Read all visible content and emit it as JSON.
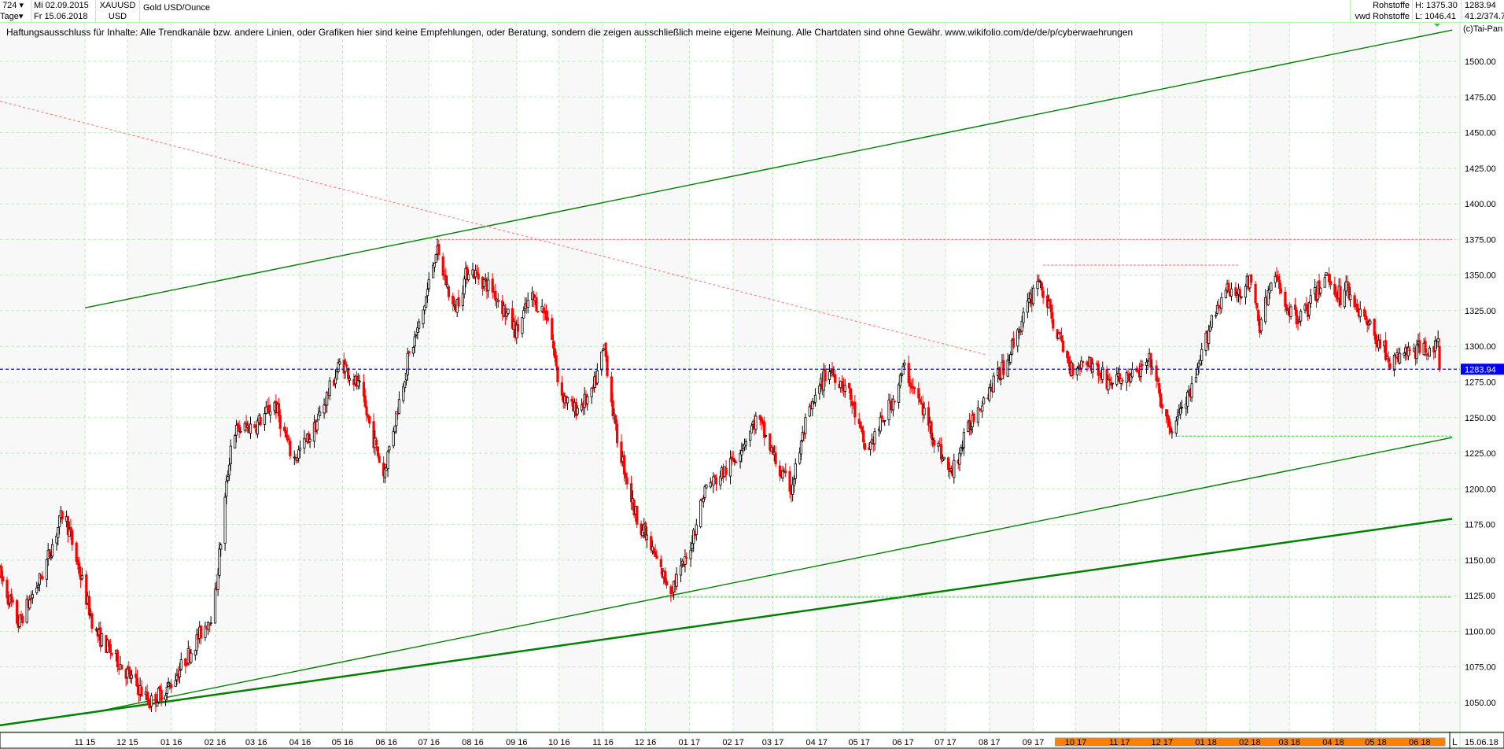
{
  "header": {
    "bars_count": "724",
    "period": "Tage",
    "date_from": "Mi 02.09.2015",
    "date_to": "Fr 15.06.2018",
    "symbol": "XAUUSD",
    "currency": "USD",
    "instrument_name": "Gold USD/Ounce",
    "source": "Rohstoffe",
    "source_sub": "vwd Rohstoffe",
    "high": "H: 1375.30",
    "low": "L: 1046.41",
    "last": "1283.94",
    "range": "41.2/374.7",
    "copyright": "(c)Tai-Pan"
  },
  "disclaimer": "Haftungsausschluss für Inhalte: Alle Trendkanäle bzw. andere Linien, oder Grafiken hier sind keine Empfehlungen, oder Beratung, sondern die zeigen ausschließlich meine eigene Meinung. Alle Chartdaten sind ohne Gewähr.  www.wikifolio.com/de/de/p/cyberwaehrungen",
  "colors": {
    "grid": "#b8f0b8",
    "up_candle": "#ffffff",
    "down_candle": "#ff0000",
    "trendline": "#008000",
    "last_price": "#0000ff",
    "resistance": "#ff8080",
    "highlight_bar": "#ff8000"
  },
  "chart_data": {
    "type": "candlestick",
    "title": "Gold USD/Ounce",
    "x_start": "2015-09-02",
    "x_end": "2018-06-15",
    "ylim": [
      1035,
      1530
    ],
    "y_ticks": [
      "1500.00",
      "1475.00",
      "1450.00",
      "1425.00",
      "1400.00",
      "1375.00",
      "1350.00",
      "1325.00",
      "1300.00",
      "1275.00",
      "1250.00",
      "1225.00",
      "1200.00",
      "1175.00",
      "1150.00",
      "1125.00",
      "1100.00",
      "1075.00",
      "1050.00"
    ],
    "x_ticks": [
      "11 15",
      "12 15",
      "01 16",
      "02 16",
      "03 16",
      "04 16",
      "05 16",
      "06 16",
      "07 16",
      "08 16",
      "09 16",
      "10 16",
      "11 16",
      "12 16",
      "01 17",
      "02 17",
      "03 17",
      "04 17",
      "05 17",
      "06 17",
      "07 17",
      "08 17",
      "09 17",
      "10 17",
      "11 17",
      "12 17",
      "01 18",
      "02 18",
      "03 18",
      "04 18",
      "05 18",
      "06 18"
    ],
    "x_end_label": "15.06.18",
    "log_label": "L",
    "last_price": 1283.94,
    "last_price_label": "1283.94",
    "grid": true,
    "price_path": [
      [
        "2015-09-02",
        1140
      ],
      [
        "2015-09-15",
        1105
      ],
      [
        "2015-10-02",
        1140
      ],
      [
        "2015-10-17",
        1185
      ],
      [
        "2015-11-08",
        1100
      ],
      [
        "2015-12-17",
        1050
      ],
      [
        "2015-12-31",
        1062
      ],
      [
        "2016-01-14",
        1085
      ],
      [
        "2016-01-31",
        1115
      ],
      [
        "2016-02-13",
        1240
      ],
      [
        "2016-03-01",
        1245
      ],
      [
        "2016-03-14",
        1260
      ],
      [
        "2016-03-27",
        1220
      ],
      [
        "2016-04-10",
        1240
      ],
      [
        "2016-04-30",
        1290
      ],
      [
        "2016-05-13",
        1270
      ],
      [
        "2016-05-30",
        1210
      ],
      [
        "2016-06-16",
        1290
      ],
      [
        "2016-06-26",
        1320
      ],
      [
        "2016-07-06",
        1368
      ],
      [
        "2016-07-19",
        1325
      ],
      [
        "2016-07-29",
        1355
      ],
      [
        "2016-08-15",
        1340
      ],
      [
        "2016-09-01",
        1310
      ],
      [
        "2016-09-11",
        1335
      ],
      [
        "2016-09-24",
        1320
      ],
      [
        "2016-10-01",
        1270
      ],
      [
        "2016-10-11",
        1255
      ],
      [
        "2016-10-24",
        1265
      ],
      [
        "2016-11-02",
        1300
      ],
      [
        "2016-11-10",
        1240
      ],
      [
        "2016-11-23",
        1185
      ],
      [
        "2016-12-13",
        1140
      ],
      [
        "2016-12-19",
        1130
      ],
      [
        "2016-12-30",
        1150
      ],
      [
        "2017-01-12",
        1200
      ],
      [
        "2017-01-29",
        1215
      ],
      [
        "2017-02-18",
        1250
      ],
      [
        "2017-03-07",
        1210
      ],
      [
        "2017-03-14",
        1200
      ],
      [
        "2017-03-24",
        1245
      ],
      [
        "2017-04-09",
        1285
      ],
      [
        "2017-04-23",
        1270
      ],
      [
        "2017-05-06",
        1225
      ],
      [
        "2017-05-26",
        1265
      ],
      [
        "2017-06-02",
        1285
      ],
      [
        "2017-06-15",
        1255
      ],
      [
        "2017-07-02",
        1215
      ],
      [
        "2017-07-05",
        1210
      ],
      [
        "2017-07-22",
        1255
      ],
      [
        "2017-08-11",
        1285
      ],
      [
        "2017-08-31",
        1335
      ],
      [
        "2017-09-04",
        1350
      ],
      [
        "2017-09-14",
        1320
      ],
      [
        "2017-09-27",
        1285
      ],
      [
        "2017-10-10",
        1290
      ],
      [
        "2017-10-24",
        1275
      ],
      [
        "2017-11-13",
        1280
      ],
      [
        "2017-11-23",
        1290
      ],
      [
        "2017-12-03",
        1250
      ],
      [
        "2017-12-06",
        1240
      ],
      [
        "2017-12-23",
        1270
      ],
      [
        "2018-01-05",
        1320
      ],
      [
        "2018-01-15",
        1340
      ],
      [
        "2018-01-19",
        1335
      ],
      [
        "2018-02-01",
        1345
      ],
      [
        "2018-02-08",
        1315
      ],
      [
        "2018-02-18",
        1350
      ],
      [
        "2018-03-03",
        1320
      ],
      [
        "2018-03-13",
        1325
      ],
      [
        "2018-03-27",
        1350
      ],
      [
        "2018-04-06",
        1335
      ],
      [
        "2018-04-09",
        1345
      ],
      [
        "2018-04-22",
        1320
      ],
      [
        "2018-05-02",
        1305
      ],
      [
        "2018-05-09",
        1295
      ],
      [
        "2018-05-12",
        1285
      ],
      [
        "2018-05-19",
        1295
      ],
      [
        "2018-06-02",
        1298
      ],
      [
        "2018-06-08",
        1300
      ],
      [
        "2018-06-14",
        1300
      ],
      [
        "2018-06-15",
        1283.94
      ]
    ],
    "trendlines": [
      {
        "kind": "upper-channel",
        "from": [
          "2015-11-01",
          1327
        ],
        "to": [
          "2018-06-24",
          1522
        ]
      },
      {
        "kind": "lower-channel",
        "from": [
          "2015-11-01",
          1042
        ],
        "to": [
          "2018-06-24",
          1236
        ]
      },
      {
        "kind": "long-support",
        "from": [
          "2015-09-02",
          1034
        ],
        "to": [
          "2018-06-24",
          1179
        ]
      },
      {
        "kind": "downtrend-dashed",
        "from": [
          "2015-09-02",
          1472
        ],
        "to": [
          "2017-07-30",
          1294
        ]
      },
      {
        "kind": "horizontal-1375",
        "from": [
          "2016-07-06",
          1375
        ],
        "to": [
          "2018-06-24",
          1375
        ]
      },
      {
        "kind": "horizontal-1357",
        "from": [
          "2017-09-08",
          1357
        ],
        "to": [
          "2018-01-25",
          1357
        ]
      },
      {
        "kind": "horizontal-1237",
        "from": [
          "2017-12-12",
          1237
        ],
        "to": [
          "2018-06-24",
          1237
        ]
      },
      {
        "kind": "horizontal-1124",
        "from": [
          "2016-12-15",
          1124
        ],
        "to": [
          "2018-06-24",
          1124
        ]
      }
    ]
  }
}
